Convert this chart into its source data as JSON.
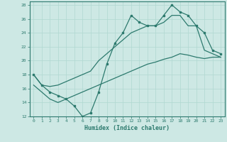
{
  "xlabel": "Humidex (Indice chaleur)",
  "bg_color": "#cde8e4",
  "line_color": "#2d7a6e",
  "grid_color": "#b0d8d0",
  "xlim": [
    -0.5,
    23.5
  ],
  "ylim": [
    12,
    28.5
  ],
  "yticks": [
    12,
    14,
    16,
    18,
    20,
    22,
    24,
    26,
    28
  ],
  "xticks": [
    0,
    1,
    2,
    3,
    4,
    5,
    6,
    7,
    8,
    9,
    10,
    11,
    12,
    13,
    14,
    15,
    16,
    17,
    18,
    19,
    20,
    21,
    22,
    23
  ],
  "line1_x": [
    0,
    1,
    2,
    3,
    4,
    5,
    6,
    7,
    8,
    9,
    10,
    11,
    12,
    13,
    14,
    15,
    16,
    17,
    18,
    19,
    20,
    21,
    22,
    23
  ],
  "line1_y": [
    18,
    16.5,
    15.5,
    15.0,
    14.5,
    13.5,
    12.0,
    12.5,
    15.5,
    19.5,
    22.5,
    24.0,
    26.5,
    25.5,
    25.0,
    25.0,
    26.5,
    28.0,
    27.0,
    26.5,
    25.0,
    24.0,
    21.5,
    21.0
  ],
  "line2_x": [
    0,
    1,
    2,
    3,
    4,
    5,
    6,
    7,
    8,
    9,
    10,
    11,
    12,
    13,
    14,
    15,
    16,
    17,
    18,
    19,
    20,
    21,
    22,
    23
  ],
  "line2_y": [
    18.0,
    16.5,
    16.3,
    16.5,
    17.0,
    17.5,
    18.0,
    18.5,
    20.0,
    21.0,
    22.0,
    23.0,
    24.0,
    24.5,
    25.0,
    25.0,
    25.5,
    26.5,
    26.5,
    25.0,
    25.0,
    21.5,
    21.0,
    20.5
  ],
  "line3_x": [
    0,
    1,
    2,
    3,
    4,
    5,
    6,
    7,
    8,
    9,
    10,
    11,
    12,
    13,
    14,
    15,
    16,
    17,
    18,
    19,
    20,
    21,
    22,
    23
  ],
  "line3_y": [
    16.5,
    15.5,
    14.5,
    14.0,
    14.5,
    15.0,
    15.5,
    16.0,
    16.5,
    17.0,
    17.5,
    18.0,
    18.5,
    19.0,
    19.5,
    19.8,
    20.2,
    20.5,
    21.0,
    20.8,
    20.5,
    20.3,
    20.5,
    20.5
  ]
}
